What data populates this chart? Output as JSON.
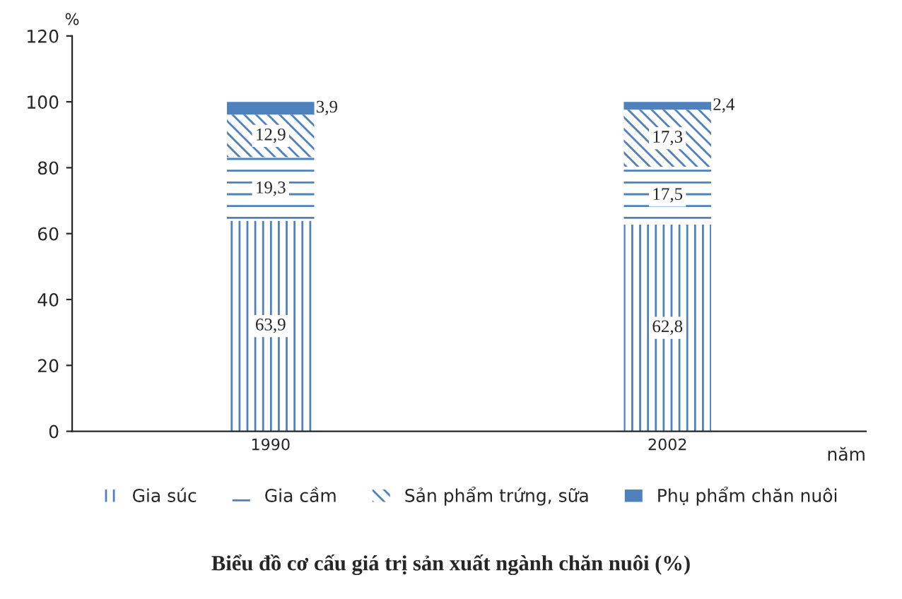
{
  "chart_data": {
    "type": "bar",
    "stacked": true,
    "title": "Biểu đồ cơ cấu giá trị sản xuất ngành chăn nuôi (%)",
    "ylabel": "%",
    "xlabel": "năm",
    "categories": [
      "1990",
      "2002"
    ],
    "series": [
      {
        "name": "Gia súc",
        "color": "#4f81bd",
        "values": [
          63.9,
          62.8
        ],
        "value_labels": [
          "63,9",
          "62,8"
        ]
      },
      {
        "name": "Gia cầm",
        "color": "#4f81bd",
        "values": [
          19.3,
          17.5
        ],
        "value_labels": [
          "19,3",
          "17,5"
        ]
      },
      {
        "name": "Sản phẩm trứng, sữa",
        "color": "#4f81bd",
        "values": [
          12.9,
          17.3
        ],
        "value_labels": [
          "12,9",
          "17,3"
        ]
      },
      {
        "name": "Phụ phẩm chăn nuôi",
        "color": "#4f81bd",
        "values": [
          3.9,
          2.4
        ],
        "value_labels": [
          "3,9",
          "2,4"
        ]
      }
    ],
    "ylim": [
      0,
      120
    ],
    "yticks": [
      0,
      20,
      40,
      60,
      80,
      100,
      120
    ],
    "grid": false,
    "legend": "bottom"
  }
}
